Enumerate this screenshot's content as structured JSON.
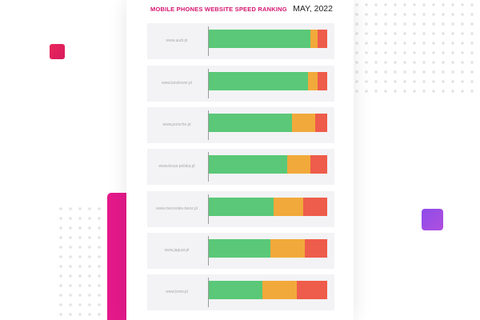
{
  "colors": {
    "good": "#5ac878",
    "medium": "#f2a93b",
    "poor": "#ee5c4b",
    "title": "#d4146f",
    "accent_red": "#e8275a",
    "accent_pink": "#e4198a",
    "accent_purple": "#8d4ce8"
  },
  "chart_data": {
    "type": "bar",
    "orientation": "horizontal",
    "stacked": true,
    "title": "MOBILE PHONES WEBSITE SPEED RANKING",
    "date": "MAY, 2022",
    "categories": [
      "www.audi.pl",
      "www.landrover.pl",
      "www.porsche.pl",
      "www.lexus-polska.pl",
      "www.mercedes-benz.pl",
      "www.jaguar.pl",
      "www.bmw.pl"
    ],
    "series": [
      {
        "color": "#5ac878",
        "values": [
          86,
          84,
          70,
          66,
          55,
          52,
          45
        ]
      },
      {
        "color": "#f2a93b",
        "values": [
          6,
          8,
          20,
          20,
          25,
          29,
          29
        ]
      },
      {
        "color": "#ee5c4b",
        "values": [
          8,
          8,
          10,
          14,
          20,
          19,
          26
        ]
      }
    ],
    "xlim": [
      0,
      100
    ]
  }
}
